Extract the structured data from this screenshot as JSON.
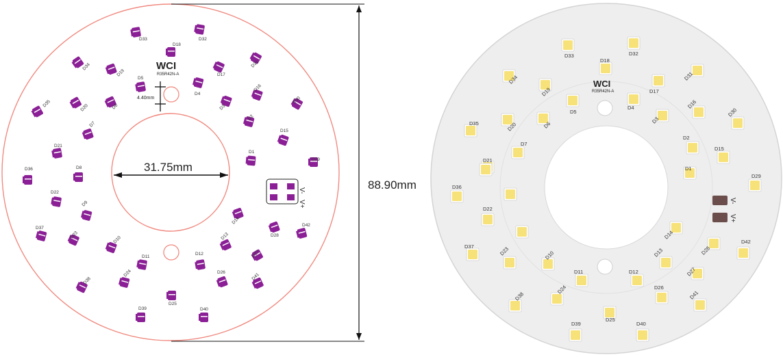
{
  "left_drawing": {
    "brand": "WCI",
    "part_number": "R35R42N-A",
    "hole_dimension": "4.40mm",
    "inner_diameter": "31.75mm",
    "outer_diameter": "88.90mm",
    "polarity_minus": "V-",
    "polarity_plus": "V+",
    "led_labels": [
      "D33",
      "D32",
      "D18",
      "D34",
      "D19",
      "D5",
      "D17",
      "D31",
      "D4",
      "D16",
      "D30",
      "D35",
      "D20",
      "D6",
      "D3",
      "D7",
      "D2",
      "D15",
      "D21",
      "D1",
      "D29",
      "D36",
      "D8",
      "D22",
      "D9",
      "D14",
      "D37",
      "D23",
      "D10",
      "D13",
      "D28",
      "D42",
      "D11",
      "D12",
      "D27",
      "D24",
      "D26",
      "D41",
      "D38",
      "D25",
      "D39",
      "D40"
    ]
  },
  "right_photo": {
    "brand": "WCI",
    "part_number": "R35R42N-A",
    "polarity_minus": "V-",
    "polarity_plus": "V+",
    "led_labels": [
      "D33",
      "D32",
      "D18",
      "D34",
      "D19",
      "D5",
      "D17",
      "D31",
      "D4",
      "D16",
      "D30",
      "D35",
      "D20",
      "D6",
      "D3",
      "D7",
      "D2",
      "D15",
      "D21",
      "D1",
      "D29",
      "D36",
      "D22",
      "D14",
      "D37",
      "D23",
      "D10",
      "D13",
      "D28",
      "D42",
      "D11",
      "D12",
      "D27",
      "D24",
      "D26",
      "D41",
      "D38",
      "D25",
      "D39",
      "D40"
    ],
    "partial_labels": [
      "D2",
      "D1"
    ]
  },
  "colors": {
    "drawing_outline": "#f08a80",
    "led_drawing": "#8b1f96",
    "pcb": "#eeeeee",
    "led_chip": "#f7e27a"
  }
}
